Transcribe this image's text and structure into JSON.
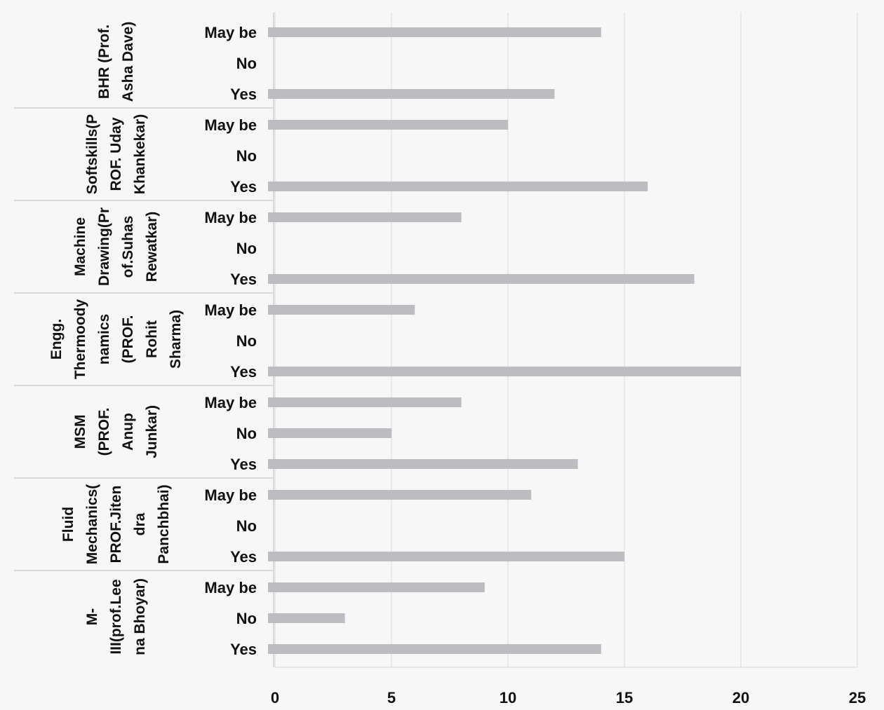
{
  "chart_data": {
    "type": "bar",
    "orientation": "horizontal",
    "title": "",
    "xlabel": "",
    "ylabel": "",
    "xlim": [
      0,
      25
    ],
    "x_ticks": [
      "0",
      "5",
      "10",
      "15",
      "20",
      "25"
    ],
    "grid": true,
    "legend": "none",
    "bar_color": "#bdbdc1",
    "groups": [
      {
        "label_lines": [
          "BHR (Prof.",
          "Asha Dave)"
        ],
        "categories": [
          "May be",
          "No",
          "Yes"
        ],
        "values": [
          14,
          0,
          12
        ]
      },
      {
        "label_lines": [
          "Softskills(P",
          "ROF. Uday",
          "Khankekar)"
        ],
        "categories": [
          "May be",
          "No",
          "Yes"
        ],
        "values": [
          10,
          0,
          16
        ]
      },
      {
        "label_lines": [
          "Machine",
          "Drawing(Pr",
          "of.Suhas",
          "Rewatkar)"
        ],
        "categories": [
          "May be",
          "No",
          "Yes"
        ],
        "values": [
          8,
          0,
          18
        ]
      },
      {
        "label_lines": [
          "Engg.",
          "Thermoody",
          "namics",
          "(PROF.",
          "Rohit",
          "Sharma)"
        ],
        "categories": [
          "May be",
          "No",
          "Yes"
        ],
        "values": [
          6,
          0,
          20
        ]
      },
      {
        "label_lines": [
          "MSM",
          "(PROF.",
          "Anup",
          "Junkar)"
        ],
        "categories": [
          "May be",
          "No",
          "Yes"
        ],
        "values": [
          8,
          5,
          13
        ]
      },
      {
        "label_lines": [
          "Fluid",
          "Mechanics(",
          "PROF.Jiten",
          "dra",
          "Panchbhai)"
        ],
        "categories": [
          "May be",
          "No",
          "Yes"
        ],
        "values": [
          11,
          0,
          15
        ]
      },
      {
        "label_lines": [
          "M-",
          "III(prof.Lee",
          "na Bhoyar)"
        ],
        "categories": [
          "May be",
          "No",
          "Yes"
        ],
        "values": [
          9,
          3,
          14
        ]
      }
    ]
  }
}
